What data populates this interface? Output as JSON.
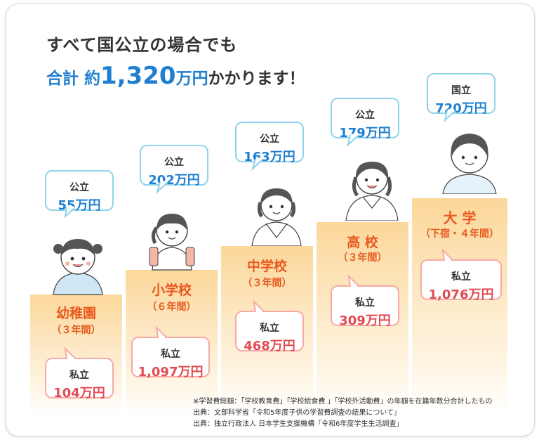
{
  "headline": {
    "line1": "すべて国公立の場合でも",
    "line2_prefix": "合計 約",
    "line2_number": "1,320",
    "line2_unit": "万円",
    "line2_suffix": "かかります！"
  },
  "stages": [
    {
      "name": "幼稚園",
      "years": "（３年間）",
      "public_label": "公立",
      "public_value": "55万円",
      "private_label": "私立",
      "private_value": "104万円"
    },
    {
      "name": "小学校",
      "years": "（６年間）",
      "public_label": "公立",
      "public_value": "202万円",
      "private_label": "私立",
      "private_value": "1,097万円"
    },
    {
      "name": "中学校",
      "years": "（３年間）",
      "public_label": "公立",
      "public_value": "163万円",
      "private_label": "私立",
      "private_value": "468万円"
    },
    {
      "name": "高 校",
      "years": "（３年間）",
      "public_label": "公立",
      "public_value": "179万円",
      "private_label": "私立",
      "private_value": "309万円"
    },
    {
      "name": "大 学",
      "years": "（下宿・４年間）",
      "public_label": "国立",
      "public_value": "720万円",
      "private_label": "私立",
      "private_value": "1,076万円"
    }
  ],
  "notes": [
    "※学習費総額：「学校教育費」「学校給食費 」「学校外活動費」の年額を在籍年数分合計したもの",
    "出典：文部科学省「令和5年度子供の学習費調査の結果について」",
    "出典：独立行政法人 日本学生支援機構「令和6年度学生生活調査」"
  ],
  "colors": {
    "public_blue": "#1f7fd0",
    "private_red": "#e14b52",
    "stage_orange": "#e85a20",
    "step_fill": "#fbd79a"
  }
}
